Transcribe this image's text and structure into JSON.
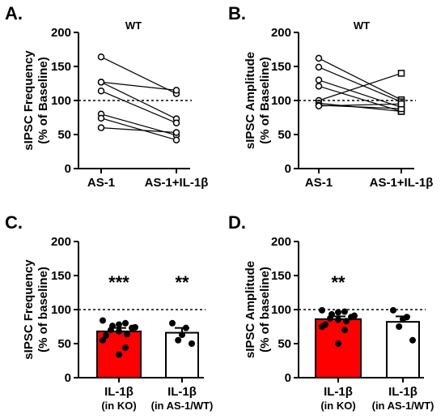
{
  "chart_data": [
    {
      "panel": "A.",
      "type": "scatter",
      "title": "WT",
      "ylabel": [
        "sIPSC Frequency",
        "(% of Baseline)"
      ],
      "categories": [
        "AS-1",
        "AS-1+IL-1β"
      ],
      "ylim": [
        0,
        200
      ],
      "yticks": [
        "0",
        "50",
        "100",
        "150",
        "200"
      ],
      "reference_line": 100,
      "marker": "circle",
      "pairs": [
        [
          164,
          110
        ],
        [
          127,
          115
        ],
        [
          127,
          73
        ],
        [
          114,
          67
        ],
        [
          80,
          49
        ],
        [
          74,
          42
        ],
        [
          60,
          53
        ]
      ]
    },
    {
      "panel": "B.",
      "type": "scatter",
      "title": "WT",
      "ylabel": [
        "sIPSC Amplitude",
        "(% of Baseline)"
      ],
      "categories": [
        "AS-1",
        "AS-1+IL-1β"
      ],
      "ylim": [
        0,
        200
      ],
      "yticks": [
        "0",
        "50",
        "100",
        "150",
        "200"
      ],
      "reference_line": 100,
      "marker": "square",
      "pairs": [
        [
          162,
          101
        ],
        [
          149,
          98
        ],
        [
          130,
          90
        ],
        [
          121,
          84
        ],
        [
          100,
          140
        ],
        [
          96,
          84
        ],
        [
          93,
          88
        ],
        [
          92,
          95
        ]
      ]
    },
    {
      "panel": "C.",
      "type": "bar",
      "ylabel": [
        "sIPSC Frequency",
        "(% of baseline)"
      ],
      "categories": [
        [
          "IL-1β",
          "(in KO)"
        ],
        [
          "IL-1β",
          "(in AS-1/WT)"
        ]
      ],
      "ylim": [
        0,
        200
      ],
      "yticks": [
        "0",
        "50",
        "100",
        "150",
        "200"
      ],
      "reference_line": 100,
      "bar_colors": [
        "#ff0000",
        "#ffffff"
      ],
      "values": [
        68,
        66
      ],
      "errors": [
        5,
        7
      ],
      "significance": [
        "***",
        "**"
      ],
      "points": [
        [
          84,
          80,
          78,
          76,
          74,
          73,
          70,
          68,
          64,
          62,
          55,
          44,
          34
        ],
        [
          80,
          73,
          63,
          55,
          50
        ]
      ]
    },
    {
      "panel": "D.",
      "type": "bar",
      "ylabel": [
        "sIPSC Amplitude",
        "(% of baseline)"
      ],
      "categories": [
        [
          "IL-1β",
          "(in KO)"
        ],
        [
          "IL-1β",
          "(in AS-1/WT)"
        ]
      ],
      "ylim": [
        0,
        200
      ],
      "yticks": [
        "0",
        "50",
        "100",
        "150",
        "200"
      ],
      "reference_line": 100,
      "bar_colors": [
        "#ff0000",
        "#ffffff"
      ],
      "values": [
        86,
        82
      ],
      "errors": [
        4,
        8
      ],
      "significance": [
        "**",
        ""
      ],
      "points": [
        [
          99,
          97,
          96,
          93,
          91,
          89,
          87,
          85,
          83,
          78,
          75,
          70,
          50
        ],
        [
          99,
          89,
          86,
          75,
          55
        ]
      ]
    }
  ]
}
